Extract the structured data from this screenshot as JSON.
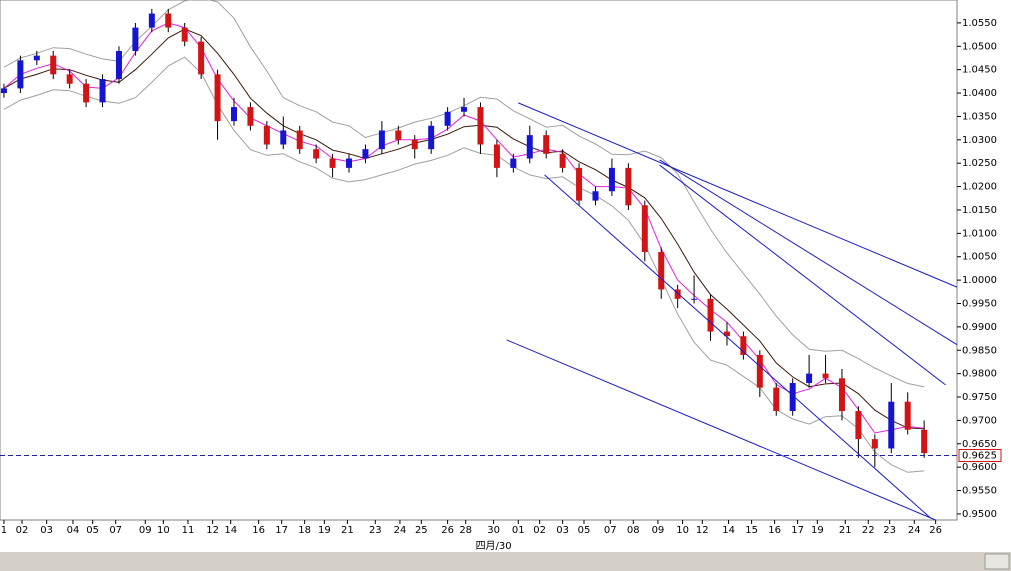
{
  "chart_data": {
    "type": "candlestick",
    "ylim": [
      0.9487,
      1.0599
    ],
    "xlim": [
      -0.24,
      58.0
    ],
    "yticks": [
      {
        "value": 1.055,
        "label": "1.0550"
      },
      {
        "value": 1.05,
        "label": "1.0500"
      },
      {
        "value": 1.045,
        "label": "1.0450"
      },
      {
        "value": 1.04,
        "label": "1.0400"
      },
      {
        "value": 1.035,
        "label": "1.0350"
      },
      {
        "value": 1.03,
        "label": "1.0300"
      },
      {
        "value": 1.025,
        "label": "1.0250"
      },
      {
        "value": 1.02,
        "label": "1.0200"
      },
      {
        "value": 1.015,
        "label": "1.0150"
      },
      {
        "value": 1.01,
        "label": "1.0100"
      },
      {
        "value": 1.005,
        "label": "1.0050"
      },
      {
        "value": 1.0,
        "label": "1.0000"
      },
      {
        "value": 0.995,
        "label": "0.9950"
      },
      {
        "value": 0.99,
        "label": "0.9900"
      },
      {
        "value": 0.985,
        "label": "0.9850"
      },
      {
        "value": 0.98,
        "label": "0.9800"
      },
      {
        "value": 0.975,
        "label": "0.9750"
      },
      {
        "value": 0.97,
        "label": "0.9700"
      },
      {
        "value": 0.965,
        "label": "0.9650"
      },
      {
        "value": 0.96,
        "label": "0.9600"
      },
      {
        "value": 0.955,
        "label": "0.9550"
      },
      {
        "value": 0.95,
        "label": "0.9500"
      }
    ],
    "xticks": [
      {
        "value": 0,
        "label": "1"
      },
      {
        "value": 1.1,
        "label": "02"
      },
      {
        "value": 2.6,
        "label": "03"
      },
      {
        "value": 4.2,
        "label": "04"
      },
      {
        "value": 5.4,
        "label": "05"
      },
      {
        "value": 6.8,
        "label": "07"
      },
      {
        "value": 8.6,
        "label": "09"
      },
      {
        "value": 9.7,
        "label": "10"
      },
      {
        "value": 11.2,
        "label": "11"
      },
      {
        "value": 12.7,
        "label": "12"
      },
      {
        "value": 13.8,
        "label": "14"
      },
      {
        "value": 15.5,
        "label": "16"
      },
      {
        "value": 16.9,
        "label": "17"
      },
      {
        "value": 18.3,
        "label": "18"
      },
      {
        "value": 19.5,
        "label": "19"
      },
      {
        "value": 20.9,
        "label": "21"
      },
      {
        "value": 22.6,
        "label": "23"
      },
      {
        "value": 24.1,
        "label": "24"
      },
      {
        "value": 25.4,
        "label": "25"
      },
      {
        "value": 27.0,
        "label": "26"
      },
      {
        "value": 28.1,
        "label": "28"
      },
      {
        "value": 29.8,
        "label": "30"
      },
      {
        "value": 31.3,
        "label": "01"
      },
      {
        "value": 32.6,
        "label": "02"
      },
      {
        "value": 34.0,
        "label": "03"
      },
      {
        "value": 35.3,
        "label": "05"
      },
      {
        "value": 36.9,
        "label": "07"
      },
      {
        "value": 38.3,
        "label": "08"
      },
      {
        "value": 39.8,
        "label": "09"
      },
      {
        "value": 41.3,
        "label": "10"
      },
      {
        "value": 42.5,
        "label": "12"
      },
      {
        "value": 44.1,
        "label": "14"
      },
      {
        "value": 45.5,
        "label": "15"
      },
      {
        "value": 46.9,
        "label": "16"
      },
      {
        "value": 48.3,
        "label": "17"
      },
      {
        "value": 49.5,
        "label": "19"
      },
      {
        "value": 51.2,
        "label": "21"
      },
      {
        "value": 52.6,
        "label": "22"
      },
      {
        "value": 53.9,
        "label": "23"
      },
      {
        "value": 55.4,
        "label": "24"
      },
      {
        "value": 56.7,
        "label": "26"
      }
    ],
    "xlabel": "四月/30",
    "xlabel_at": 29.8,
    "up_color": "#1414d2",
    "down_color": "#d21414",
    "ohlc": [
      [
        1.04,
        1.042,
        1.039,
        1.041
      ],
      [
        1.041,
        1.048,
        1.04,
        1.047
      ],
      [
        1.047,
        1.049,
        1.046,
        1.048
      ],
      [
        1.048,
        1.049,
        1.043,
        1.044
      ],
      [
        1.044,
        1.045,
        1.041,
        1.042
      ],
      [
        1.042,
        1.043,
        1.037,
        1.038
      ],
      [
        1.038,
        1.044,
        1.037,
        1.043
      ],
      [
        1.043,
        1.05,
        1.042,
        1.049
      ],
      [
        1.049,
        1.055,
        1.048,
        1.054
      ],
      [
        1.054,
        1.058,
        1.053,
        1.057
      ],
      [
        1.057,
        1.058,
        1.053,
        1.054
      ],
      [
        1.054,
        1.055,
        1.05,
        1.051
      ],
      [
        1.051,
        1.052,
        1.043,
        1.044
      ],
      [
        1.044,
        1.045,
        1.03,
        1.034
      ],
      [
        1.034,
        1.039,
        1.033,
        1.037
      ],
      [
        1.037,
        1.038,
        1.032,
        1.033
      ],
      [
        1.033,
        1.034,
        1.028,
        1.029
      ],
      [
        1.029,
        1.035,
        1.028,
        1.032
      ],
      [
        1.032,
        1.033,
        1.027,
        1.028
      ],
      [
        1.028,
        1.029,
        1.025,
        1.026
      ],
      [
        1.026,
        1.027,
        1.022,
        1.024
      ],
      [
        1.024,
        1.027,
        1.023,
        1.026
      ],
      [
        1.026,
        1.029,
        1.025,
        1.028
      ],
      [
        1.028,
        1.034,
        1.027,
        1.032
      ],
      [
        1.032,
        1.033,
        1.029,
        1.03
      ],
      [
        1.03,
        1.031,
        1.026,
        1.028
      ],
      [
        1.028,
        1.034,
        1.027,
        1.033
      ],
      [
        1.033,
        1.037,
        1.032,
        1.036
      ],
      [
        1.036,
        1.039,
        1.035,
        1.037
      ],
      [
        1.037,
        1.038,
        1.027,
        1.029
      ],
      [
        1.029,
        1.03,
        1.022,
        1.024
      ],
      [
        1.024,
        1.027,
        1.023,
        1.026
      ],
      [
        1.026,
        1.033,
        1.025,
        1.031
      ],
      [
        1.031,
        1.032,
        1.026,
        1.027
      ],
      [
        1.027,
        1.028,
        1.023,
        1.024
      ],
      [
        1.024,
        1.025,
        1.016,
        1.017
      ],
      [
        1.017,
        1.02,
        1.016,
        1.019
      ],
      [
        1.019,
        1.026,
        1.018,
        1.024
      ],
      [
        1.024,
        1.025,
        1.015,
        1.016
      ],
      [
        1.016,
        1.017,
        1.004,
        1.006
      ],
      [
        1.006,
        1.007,
        0.996,
        0.998
      ],
      [
        0.998,
        0.999,
        0.994,
        0.996
      ],
      [
        0.996,
        1.001,
        0.995,
        0.996
      ],
      [
        0.996,
        0.997,
        0.987,
        0.989
      ],
      [
        0.989,
        0.991,
        0.986,
        0.988
      ],
      [
        0.988,
        0.989,
        0.983,
        0.984
      ],
      [
        0.984,
        0.985,
        0.975,
        0.977
      ],
      [
        0.977,
        0.978,
        0.971,
        0.972
      ],
      [
        0.972,
        0.979,
        0.971,
        0.978
      ],
      [
        0.978,
        0.984,
        0.977,
        0.98
      ],
      [
        0.98,
        0.984,
        0.978,
        0.979
      ],
      [
        0.979,
        0.981,
        0.97,
        0.972
      ],
      [
        0.972,
        0.973,
        0.962,
        0.966
      ],
      [
        0.966,
        0.967,
        0.96,
        0.964
      ],
      [
        0.964,
        0.978,
        0.963,
        0.974
      ],
      [
        0.974,
        0.976,
        0.967,
        0.968
      ],
      [
        0.968,
        0.97,
        0.962,
        0.963
      ]
    ],
    "lines": [
      {
        "color": "#a0a0a0",
        "values": [
          1.0455,
          1.0475,
          1.0485,
          1.0497,
          1.0495,
          1.0483,
          1.0473,
          1.0468,
          1.051,
          1.0543,
          1.0578,
          1.0597,
          1.0603,
          1.0595,
          1.056,
          1.0499,
          1.0447,
          1.039,
          1.0373,
          1.036,
          1.0338,
          1.033,
          1.0305,
          1.0315,
          1.0325,
          1.0338,
          1.0346,
          1.0357,
          1.0373,
          1.0391,
          1.0387,
          1.0362,
          1.0345,
          1.0327,
          1.0331,
          1.0308,
          1.0291,
          1.0269,
          1.0268,
          1.0276,
          1.0262,
          1.0227,
          1.0167,
          1.0109,
          1.0058,
          1.0014,
          0.997,
          0.9923,
          0.9883,
          0.9852,
          0.9848,
          0.985,
          0.9832,
          0.9812,
          0.9795,
          0.9779,
          0.9772
        ]
      },
      {
        "color": "#a0a0a0",
        "values": [
          1.0365,
          1.0385,
          1.0395,
          1.0407,
          1.0405,
          1.0393,
          1.0383,
          1.0378,
          1.039,
          1.0423,
          1.0458,
          1.0477,
          1.0443,
          1.0375,
          1.032,
          1.0279,
          1.0267,
          1.027,
          1.0253,
          1.024,
          1.0218,
          1.021,
          1.0215,
          1.0225,
          1.0235,
          1.0248,
          1.0256,
          1.0267,
          1.0283,
          1.0271,
          1.0267,
          1.0242,
          1.0225,
          1.0217,
          1.0221,
          1.0198,
          1.0181,
          1.0159,
          1.0128,
          1.0076,
          1.0002,
          0.9927,
          0.9867,
          0.9829,
          0.9818,
          0.9794,
          0.977,
          0.9723,
          0.9703,
          0.9692,
          0.9708,
          0.971,
          0.9682,
          0.9632,
          0.9605,
          0.9589,
          0.9592
        ]
      },
      {
        "color": "#3a1a0a",
        "values": [
          1.041,
          1.043,
          1.044,
          1.0452,
          1.045,
          1.0438,
          1.0428,
          1.0423,
          1.045,
          1.0483,
          1.0518,
          1.0537,
          1.0523,
          1.0485,
          1.044,
          1.0389,
          1.0357,
          1.033,
          1.0313,
          1.03,
          1.0278,
          1.027,
          1.026,
          1.027,
          1.028,
          1.0293,
          1.0301,
          1.0312,
          1.0328,
          1.0331,
          1.0327,
          1.0302,
          1.0285,
          1.0272,
          1.0276,
          1.0253,
          1.0236,
          1.0214,
          1.0198,
          1.0176,
          1.0132,
          1.0077,
          1.0017,
          0.9969,
          0.9938,
          0.9904,
          0.987,
          0.9823,
          0.9793,
          0.9772,
          0.9778,
          0.978,
          0.9757,
          0.9722,
          0.97,
          0.9684,
          0.9682
        ]
      },
      {
        "color": "#e020e0",
        "values": [
          1.041,
          1.044,
          1.0453,
          1.0463,
          1.0447,
          1.0413,
          1.041,
          1.0433,
          1.0487,
          1.0533,
          1.055,
          1.054,
          1.0497,
          1.043,
          1.0383,
          1.0347,
          1.033,
          1.0313,
          1.0297,
          1.0287,
          1.026,
          1.0253,
          1.026,
          1.0287,
          1.03,
          1.03,
          1.0303,
          1.0323,
          1.0353,
          1.034,
          1.03,
          1.0263,
          1.027,
          1.028,
          1.0273,
          1.0227,
          1.02,
          1.02,
          1.0197,
          1.0153,
          1.0067,
          1.0,
          0.9967,
          0.9937,
          0.991,
          0.987,
          0.983,
          0.9777,
          0.9757,
          0.9767,
          0.979,
          0.977,
          0.9723,
          0.9673,
          0.968,
          0.9687,
          0.9683
        ]
      }
    ],
    "trend_color": "#1c1cc8",
    "trendlines": [
      {
        "from": [
          31.3,
          1.0379
        ],
        "to": [
          58.0,
          0.9985
        ]
      },
      {
        "from": [
          39.9,
          1.0257
        ],
        "to": [
          58.0,
          0.9862
        ]
      },
      {
        "from": [
          32.9,
          1.0225
        ],
        "to": [
          56.4,
          0.9491
        ]
      },
      {
        "from": [
          39.9,
          1.0246
        ],
        "to": [
          57.3,
          0.9776
        ]
      },
      {
        "from": [
          30.6,
          0.9872
        ],
        "to": [
          56.7,
          0.9487
        ]
      }
    ],
    "last": 0.9625,
    "last_color": "#2020a0"
  }
}
